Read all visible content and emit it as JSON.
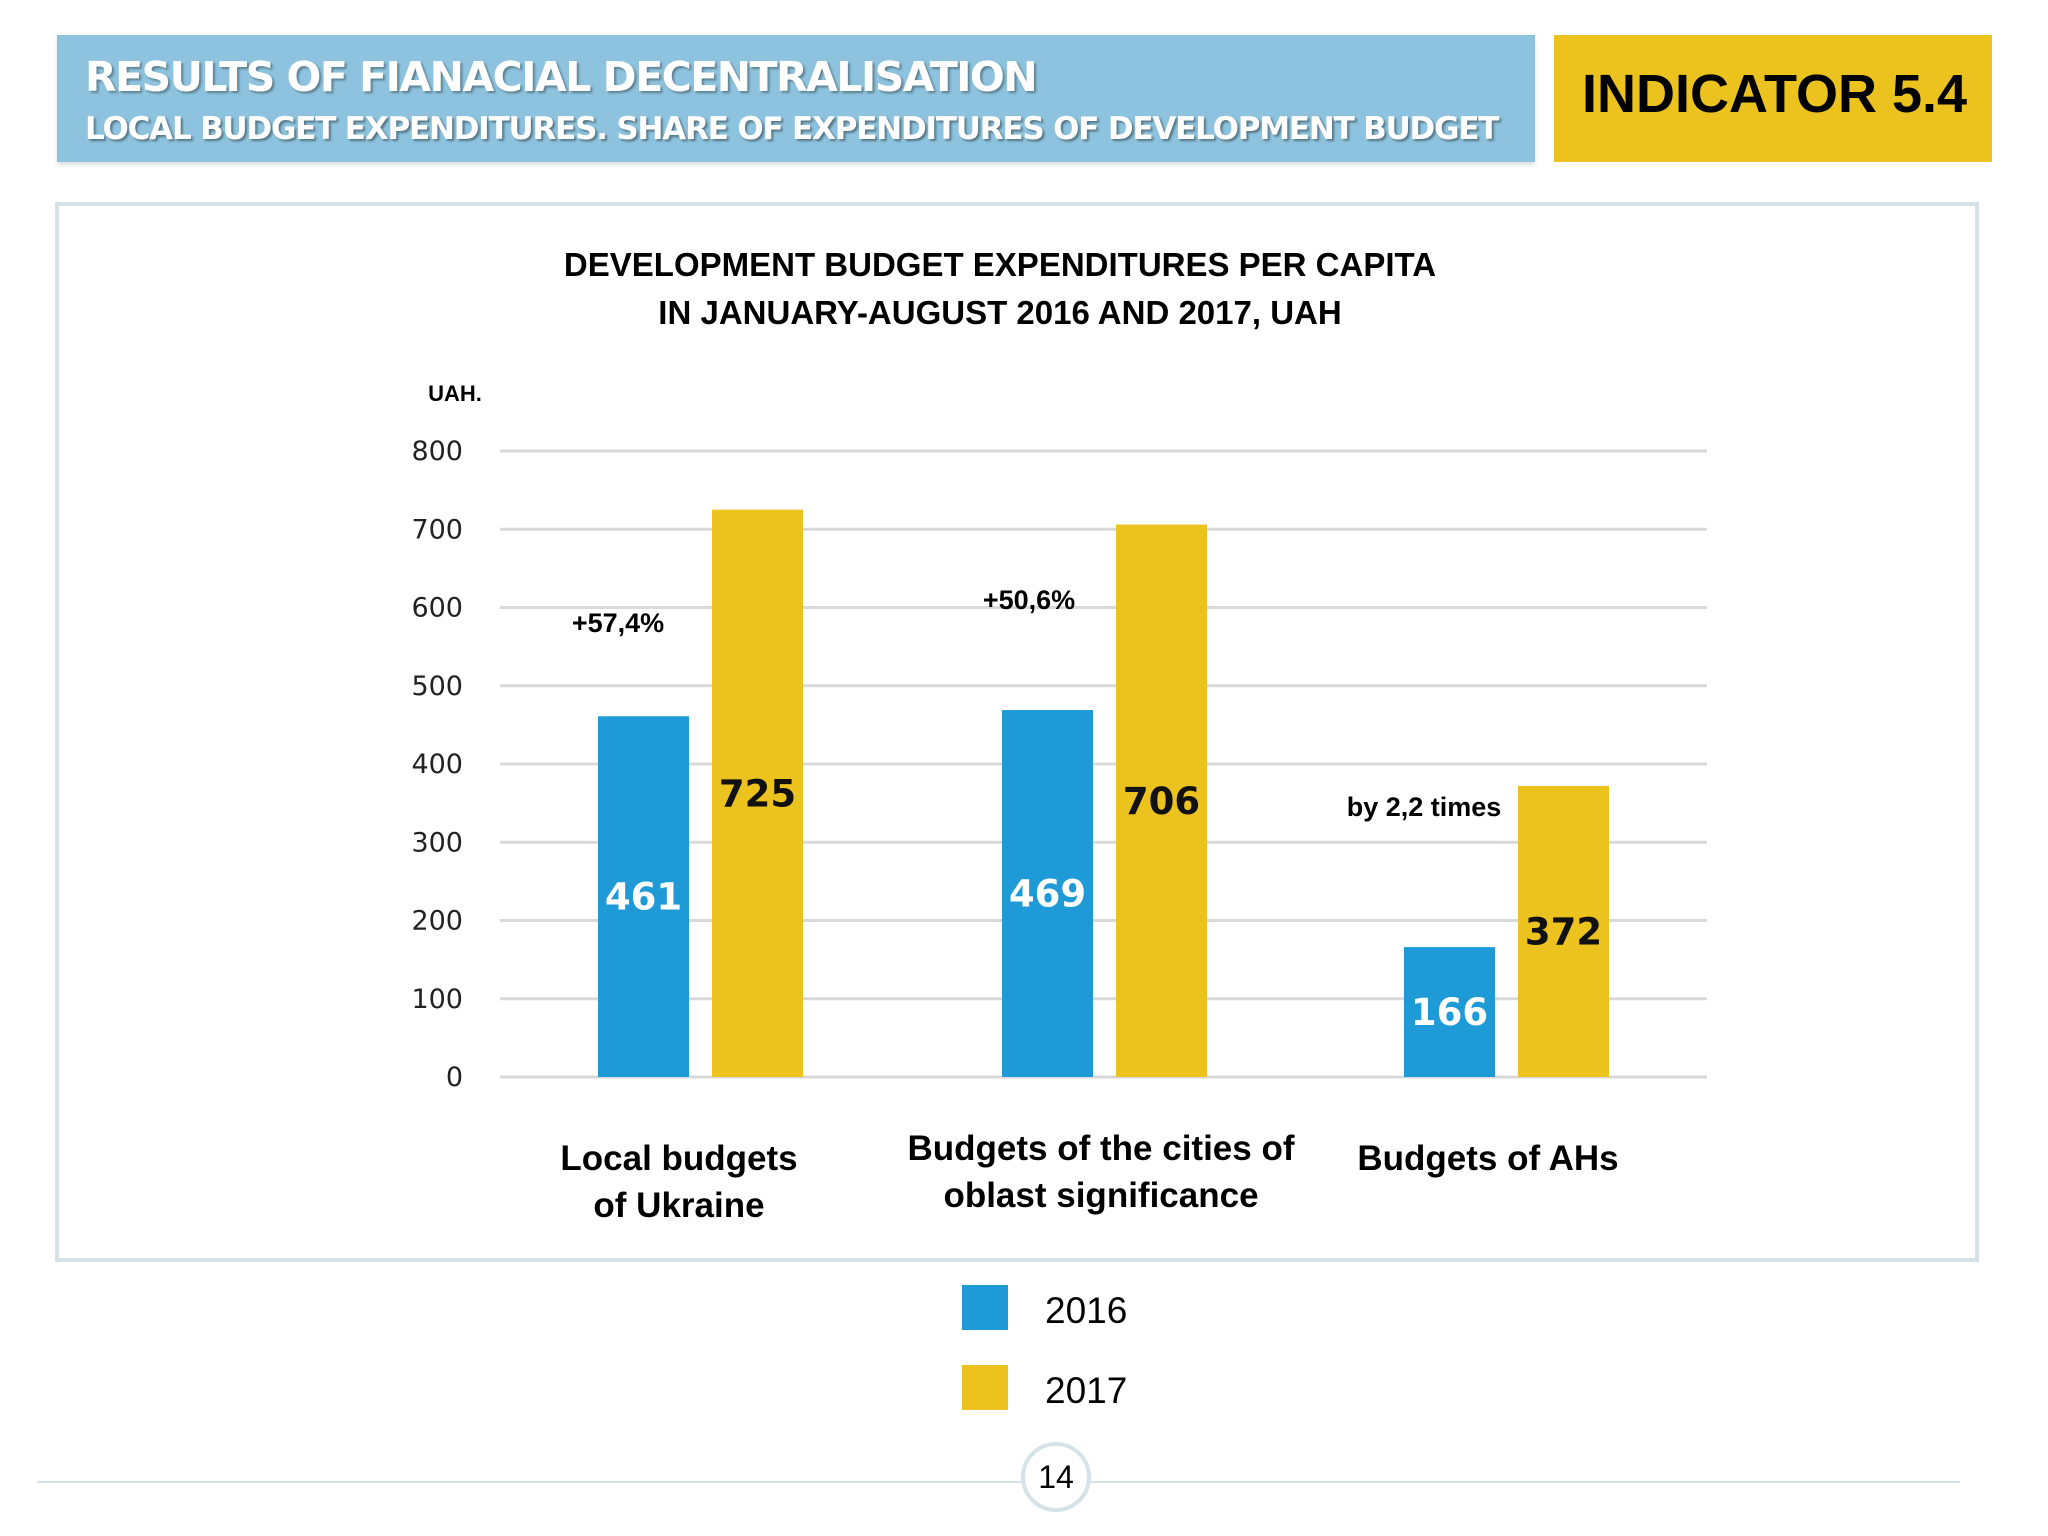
{
  "header": {
    "title": "RESULTS OF FIANACIAL DECENTRALISATION",
    "subtitle": "LOCAL BUDGET EXPENDITURES. SHARE OF EXPENDITURES OF DEVELOPMENT BUDGET",
    "indicator": "INDICATOR 5.4",
    "colors": {
      "banner": "#8dc3de",
      "indicator": "#ecc31e"
    }
  },
  "page_number": "14",
  "chart_data": {
    "type": "bar",
    "title_lines": [
      "DEVELOPMENT BUDGET EXPENDITURES PER CAPITA",
      "IN JANUARY-AUGUST 2016 AND 2017, UAH"
    ],
    "ylabel": "UAH.",
    "xlabel": "",
    "ylim": [
      0,
      800
    ],
    "yticks": [
      0,
      100,
      200,
      300,
      400,
      500,
      600,
      700,
      800
    ],
    "grid": true,
    "legend_position": "bottom",
    "categories": [
      [
        "Local budgets",
        "of Ukraine"
      ],
      [
        "Budgets of the cities of",
        "oblast significance"
      ],
      [
        "Budgets of AHs"
      ]
    ],
    "series": [
      {
        "name": "2016",
        "color": "#1e9bd7",
        "values": [
          461,
          469,
          166
        ]
      },
      {
        "name": "2017",
        "color": "#ecc31e",
        "values": [
          725,
          706,
          372
        ]
      }
    ],
    "annotations": [
      "+57,4%",
      "+50,6%",
      "by 2,2 times"
    ]
  }
}
